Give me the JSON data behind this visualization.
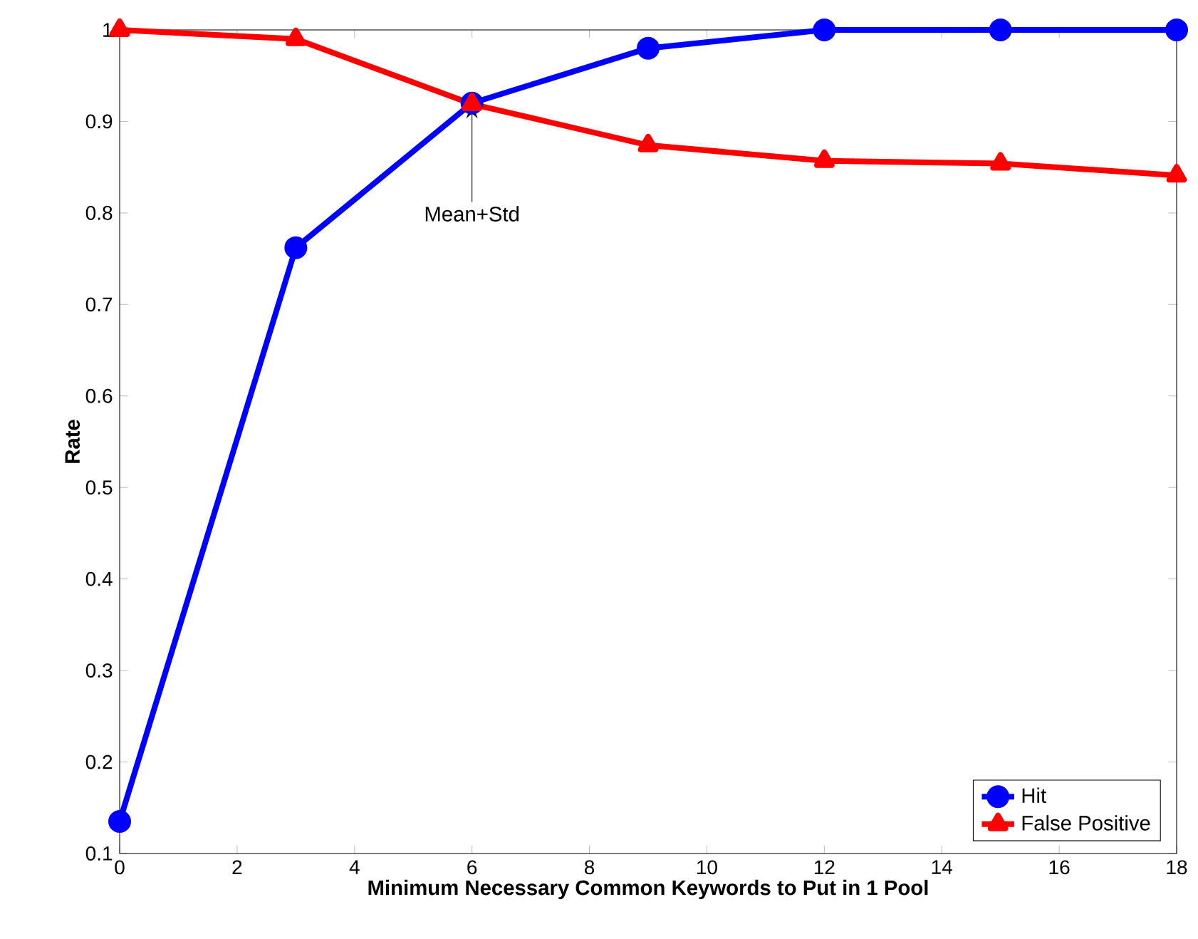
{
  "chart_data": {
    "type": "line",
    "xlabel": "Minimum Necessary Common Keywords to Put in 1 Pool",
    "ylabel": "Rate",
    "x": [
      0,
      3,
      6,
      9,
      12,
      15,
      18
    ],
    "series": [
      {
        "name": "Hit",
        "color": "#0000ff",
        "marker": "circle",
        "values": [
          0.135,
          0.762,
          0.92,
          0.98,
          1.0,
          1.0,
          1.0
        ]
      },
      {
        "name": "False Positive",
        "color": "#ff0000",
        "marker": "triangle",
        "values": [
          1.0,
          0.99,
          0.919,
          0.874,
          0.857,
          0.854,
          0.841
        ]
      }
    ],
    "xlim": [
      0,
      18
    ],
    "ylim": [
      0.1,
      1
    ],
    "xticks": [
      0,
      2,
      4,
      6,
      8,
      10,
      12,
      14,
      16,
      18
    ],
    "yticks": [
      0.1,
      0.2,
      0.3,
      0.4,
      0.5,
      0.6,
      0.7,
      0.8,
      0.9,
      1
    ],
    "annotations": [
      {
        "text": "Mean+Std",
        "x": 6,
        "y": 0.92
      }
    ],
    "grid": false,
    "legend": "bottom right",
    "line_style": "solid"
  }
}
